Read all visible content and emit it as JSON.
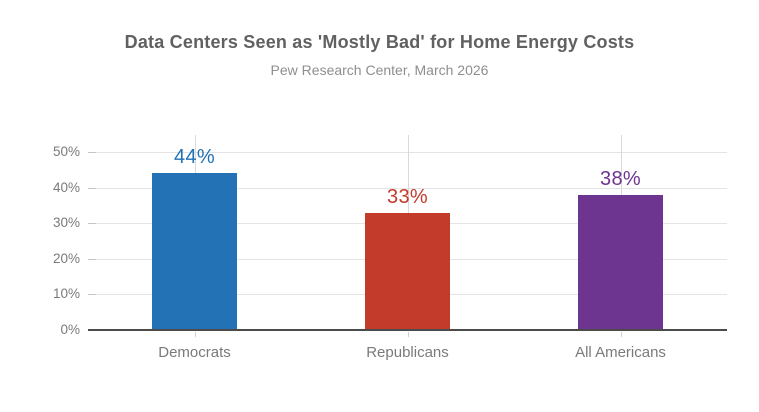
{
  "header": {
    "title": "Data Centers Seen as 'Mostly Bad' for Home Energy Costs",
    "subtitle": "Pew Research Center, March 2026"
  },
  "chart_data": {
    "type": "bar",
    "title": "Data Centers Seen as 'Mostly Bad' for Home Energy Costs",
    "subtitle": "Pew Research Center, March 2026",
    "categories": [
      "Democrats",
      "Republicans",
      "All Americans"
    ],
    "values": [
      44,
      33,
      38
    ],
    "value_labels": [
      "44%",
      "33%",
      "38%"
    ],
    "bar_colors": [
      "#2272b5",
      "#c23b2b",
      "#6e3590"
    ],
    "label_colors": [
      "#2272b5",
      "#c23b2b",
      "#6e3590"
    ],
    "ytick_labels": [
      "0%",
      "10%",
      "20%",
      "30%",
      "40%",
      "50%"
    ],
    "ytick_values": [
      0,
      10,
      20,
      30,
      40,
      50
    ],
    "ylim": [
      0,
      55
    ],
    "xlabel": "",
    "ylabel": "",
    "grid": "on",
    "legend": "none",
    "colors": {
      "title_text": "#616161",
      "subtitle_text": "#8e8e8e",
      "axis_label_text": "#7a7a7a",
      "axis_line": "#4b4b4b",
      "gridline": "#e4e4e4"
    }
  }
}
